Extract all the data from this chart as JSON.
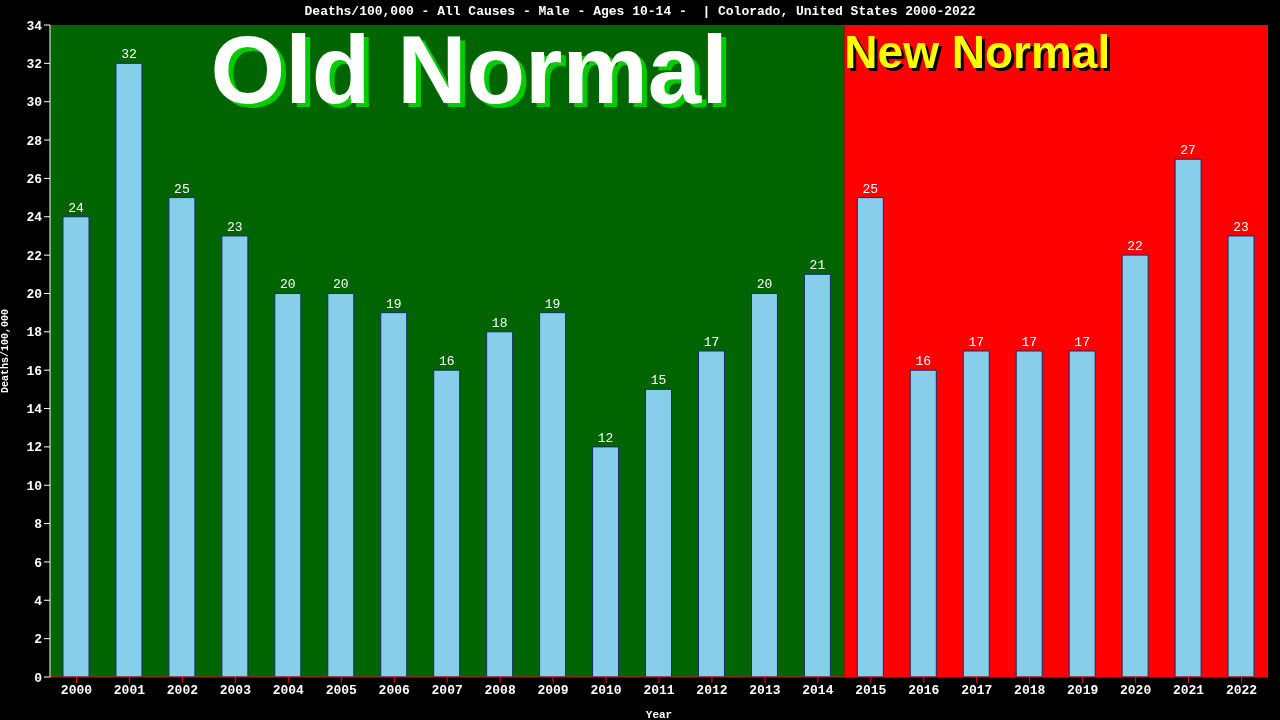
{
  "chart_data": {
    "type": "bar",
    "title": "Deaths/100,000 - All Causes - Male - Ages 10-14 -  | Colorado, United States 2000-2022",
    "xlabel": "Year",
    "ylabel": "Deaths/100,000",
    "categories": [
      "2000",
      "2001",
      "2002",
      "2003",
      "2004",
      "2005",
      "2006",
      "2007",
      "2008",
      "2009",
      "2010",
      "2011",
      "2012",
      "2013",
      "2014",
      "2015",
      "2016",
      "2017",
      "2018",
      "2019",
      "2020",
      "2021",
      "2022"
    ],
    "values": [
      24,
      32,
      25,
      23,
      20,
      20,
      19,
      16,
      18,
      19,
      12,
      15,
      17,
      20,
      21,
      25,
      16,
      17,
      17,
      17,
      22,
      27,
      23
    ],
    "color": "#87ceeb",
    "data_labels": true,
    "ylim": [
      0,
      34
    ],
    "yticks": [
      0,
      2,
      4,
      6,
      8,
      10,
      12,
      14,
      16,
      18,
      20,
      22,
      24,
      26,
      28,
      30,
      32,
      34
    ],
    "grid": false,
    "legend": false,
    "bands": [
      {
        "axis": "x",
        "from": "2000",
        "to": "2014",
        "label": "Old Normal",
        "color": "#006400"
      },
      {
        "axis": "x",
        "from": "2015",
        "to": "2022",
        "label": "New Normal",
        "color": "#ff0000"
      }
    ]
  }
}
